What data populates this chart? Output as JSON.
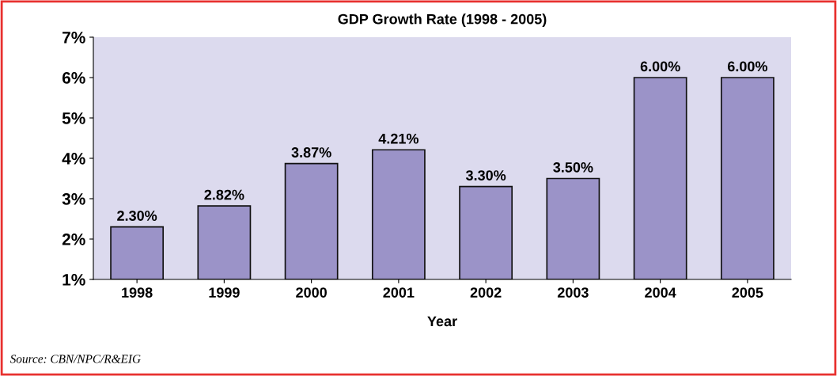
{
  "chart_data": {
    "type": "bar",
    "title": "GDP Growth Rate (1998 - 2005)",
    "xlabel": "Year",
    "categories": [
      "1998",
      "1999",
      "2000",
      "2001",
      "2002",
      "2003",
      "2004",
      "2005"
    ],
    "values": [
      2.3,
      2.82,
      3.87,
      4.21,
      3.3,
      3.5,
      6.0,
      6.0
    ],
    "value_labels": [
      "2.30%",
      "2.82%",
      "3.87%",
      "4.21%",
      "3.30%",
      "3.50%",
      "6.00%",
      "6.00%"
    ],
    "color": "#9b93c8",
    "ylim": [
      1,
      7
    ],
    "yticks": [
      {
        "value": 1,
        "label": "1%"
      },
      {
        "value": 2,
        "label": "2%"
      },
      {
        "value": 3,
        "label": "3%"
      },
      {
        "value": 4,
        "label": "4%"
      },
      {
        "value": 5,
        "label": "5%"
      },
      {
        "value": 6,
        "label": "6%"
      },
      {
        "value": 7,
        "label": "7%"
      }
    ],
    "annotations": [
      "Source: CBN/NPC/R&EIG"
    ]
  }
}
